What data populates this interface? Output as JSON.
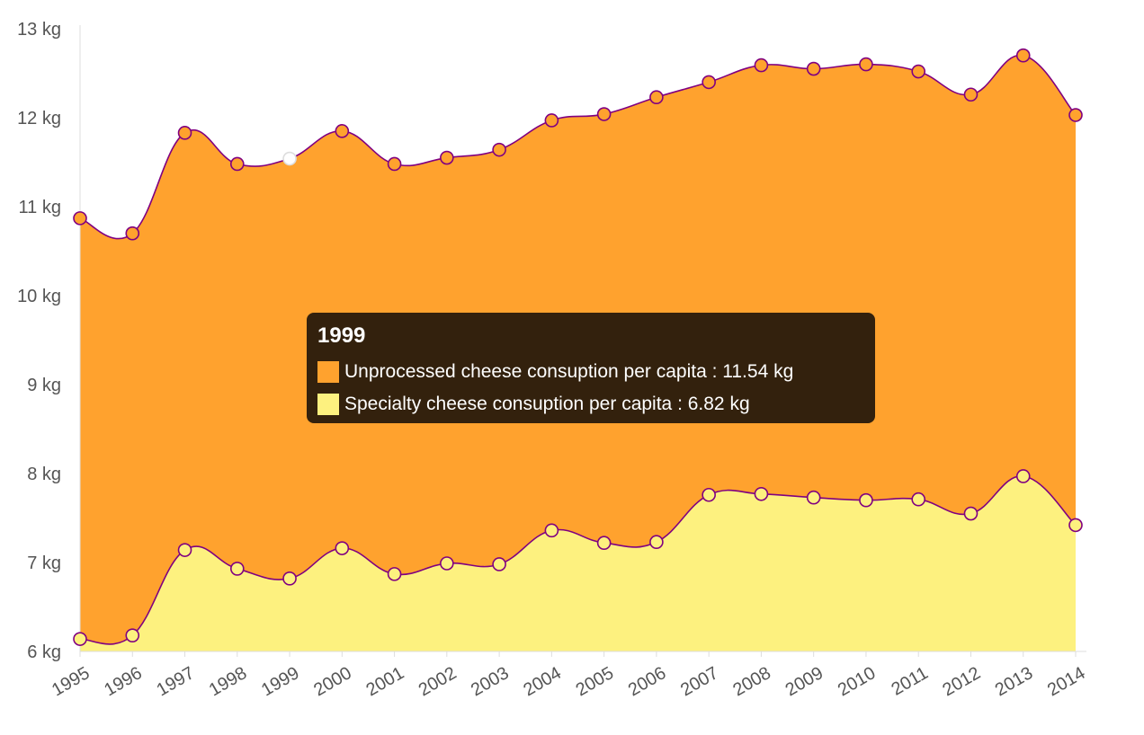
{
  "chart_data": {
    "type": "area",
    "stacked": false,
    "x": [
      "1995",
      "1996",
      "1997",
      "1998",
      "1999",
      "2000",
      "2001",
      "2002",
      "2003",
      "2004",
      "2005",
      "2006",
      "2007",
      "2008",
      "2009",
      "2010",
      "2011",
      "2012",
      "2013",
      "2014"
    ],
    "series": [
      {
        "name": "Unprocessed cheese consuption per capita",
        "color": "#ffa22e",
        "values": [
          10.87,
          10.7,
          11.83,
          11.48,
          11.54,
          11.85,
          11.48,
          11.55,
          11.64,
          11.97,
          12.04,
          12.23,
          12.4,
          12.59,
          12.55,
          12.6,
          12.52,
          12.26,
          12.7,
          12.03
        ]
      },
      {
        "name": "Specialty cheese consuption per capita",
        "color": "#fdf17f",
        "values": [
          6.14,
          6.18,
          7.14,
          6.93,
          6.82,
          7.16,
          6.87,
          6.99,
          6.98,
          7.36,
          7.22,
          7.23,
          7.76,
          7.77,
          7.73,
          7.7,
          7.71,
          7.55,
          7.97,
          7.42
        ]
      }
    ],
    "y_ticks": [
      "6 kg",
      "7 kg",
      "8 kg",
      "9 kg",
      "10 kg",
      "11 kg",
      "12 kg",
      "13 kg"
    ],
    "ylim": [
      6,
      13
    ],
    "line_color": "#800080",
    "axis_color": "#dddddd",
    "grid": false,
    "legend": "none"
  },
  "tooltip": {
    "title": "1999",
    "rows": [
      {
        "label": "Unprocessed cheese consuption per capita : 11.54 kg",
        "color": "#ffa22e"
      },
      {
        "label": "Specialty cheese consuption per capita : 6.82 kg",
        "color": "#fdf17f"
      }
    ]
  }
}
